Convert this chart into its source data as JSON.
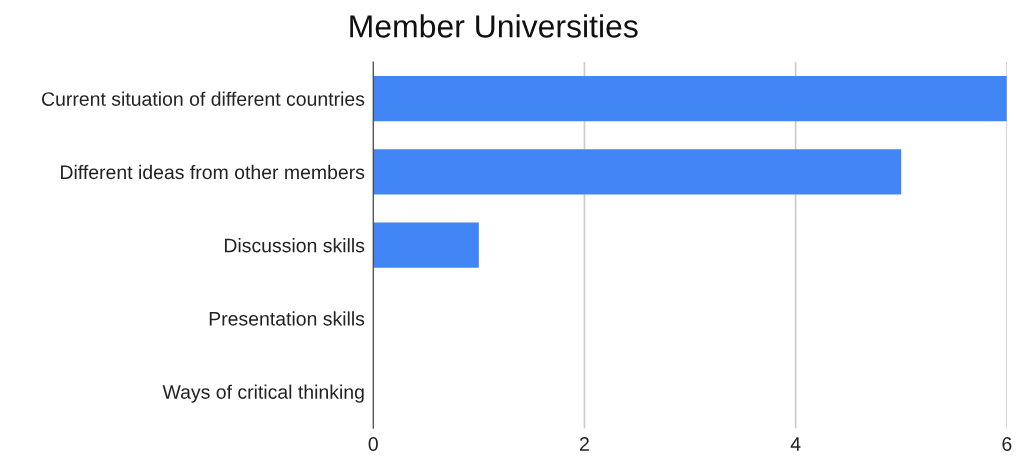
{
  "chart_data": {
    "type": "bar",
    "orientation": "horizontal",
    "title": "Member Universities",
    "categories": [
      "Current situation of different countries",
      "Different ideas from other members",
      "Discussion skills",
      "Presentation skills",
      "Ways of critical thinking"
    ],
    "values": [
      6,
      5,
      1,
      0,
      0
    ],
    "color": "#4285f4",
    "xlim": [
      0,
      6
    ],
    "xticks": [
      0,
      2,
      4,
      6
    ],
    "grid": "x",
    "legend": false
  }
}
